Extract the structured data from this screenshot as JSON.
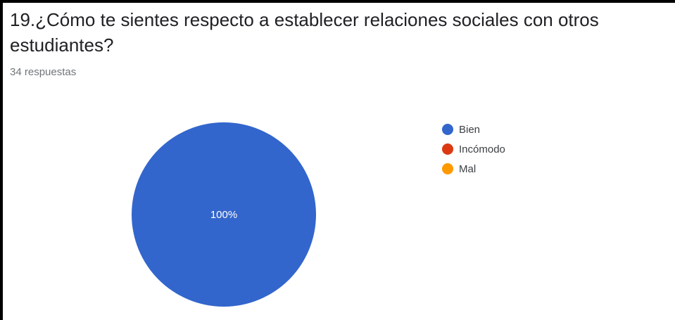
{
  "question": {
    "title": "19.¿Cómo te sientes respecto a establecer relaciones sociales con otros estudiantes?",
    "responses": "34 respuestas"
  },
  "chart_data": {
    "type": "pie",
    "title": "19.¿Cómo te sientes respecto a establecer relaciones sociales con otros estudiantes?",
    "subtitle": "34 respuestas",
    "categories": [
      "Bien",
      "Incómodo",
      "Mal"
    ],
    "values": [
      100,
      0,
      0
    ],
    "value_unit": "%",
    "data_labels": [
      "100%",
      "",
      ""
    ],
    "colors": [
      "#3366cc",
      "#dc3912",
      "#ff9900"
    ],
    "legend": "right"
  }
}
